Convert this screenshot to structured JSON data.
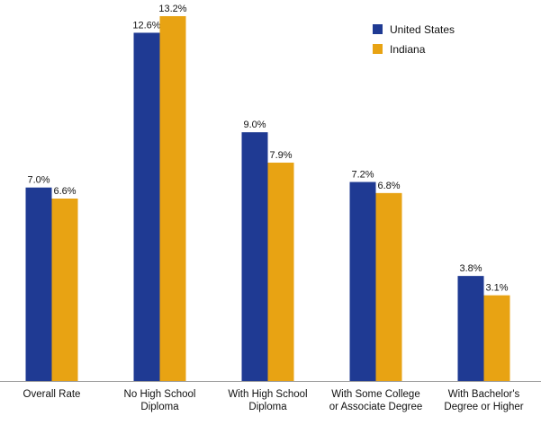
{
  "chart_data": {
    "type": "bar",
    "categories": [
      [
        "Overall Rate"
      ],
      [
        "No High School",
        "Diploma"
      ],
      [
        "With High School",
        "Diploma"
      ],
      [
        "With Some College",
        "or Associate Degree"
      ],
      [
        "With Bachelor's",
        "Degree or Higher"
      ]
    ],
    "series": [
      {
        "name": "United States",
        "color": "#1f3a93",
        "values": [
          7.0,
          12.6,
          9.0,
          7.2,
          3.8
        ],
        "labels": [
          "7.0%",
          "12.6%",
          "9.0%",
          "7.2%",
          "3.8%"
        ]
      },
      {
        "name": "Indiana",
        "color": "#e8a313",
        "values": [
          6.6,
          13.2,
          7.9,
          6.8,
          3.1
        ],
        "labels": [
          "6.6%",
          "13.2%",
          "7.9%",
          "6.8%",
          "3.1%"
        ]
      }
    ],
    "ylim": [
      0,
      13.2
    ],
    "grid": false,
    "legend_position": "top-right",
    "axis_color": "#999999"
  }
}
